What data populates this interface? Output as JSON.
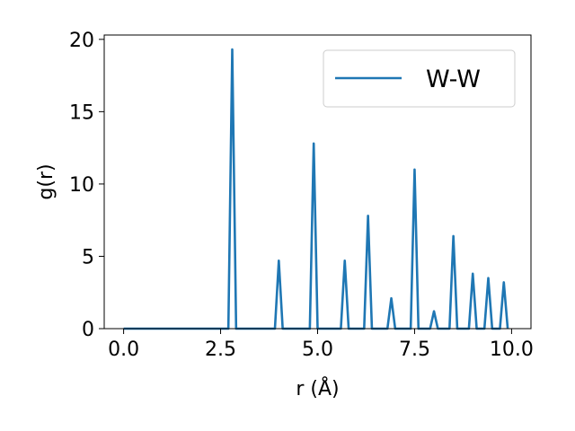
{
  "chart_data": {
    "type": "line",
    "title": "",
    "xlabel": "r (Å)",
    "ylabel": "g(r)",
    "xlim": [
      -0.5,
      10.5
    ],
    "ylim": [
      0,
      20.3
    ],
    "xticks": [
      0.0,
      2.5,
      5.0,
      7.5,
      10.0
    ],
    "xtick_labels": [
      "0.0",
      "2.5",
      "5.0",
      "7.5",
      "10.0"
    ],
    "yticks": [
      0,
      5,
      10,
      15,
      20
    ],
    "ytick_labels": [
      "0",
      "5",
      "10",
      "15",
      "20"
    ],
    "grid": false,
    "legend_position": "top-right",
    "series": [
      {
        "name": "W-W",
        "color": "#1f77b4",
        "x": [
          0.0,
          2.7,
          2.8,
          2.9,
          3.9,
          4.0,
          4.1,
          4.8,
          4.9,
          5.0,
          5.6,
          5.7,
          5.8,
          6.2,
          6.3,
          6.4,
          6.8,
          6.9,
          7.0,
          7.4,
          7.5,
          7.6,
          7.9,
          8.0,
          8.1,
          8.4,
          8.5,
          8.6,
          8.9,
          9.0,
          9.1,
          9.3,
          9.4,
          9.5,
          9.7,
          9.8,
          9.9
        ],
        "y": [
          0,
          0,
          19.3,
          0,
          0,
          4.7,
          0,
          0,
          12.8,
          0,
          0,
          4.7,
          0,
          0,
          7.8,
          0,
          0,
          2.1,
          0,
          0,
          11.0,
          0,
          0,
          1.2,
          0,
          0,
          6.4,
          0,
          0,
          3.8,
          0,
          0,
          3.5,
          0,
          0,
          3.2,
          0
        ]
      }
    ]
  }
}
